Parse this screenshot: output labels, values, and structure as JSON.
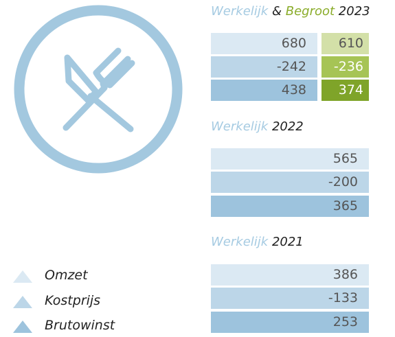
{
  "legend": [
    "Omzet",
    "Kostprijs",
    "Brutowinst"
  ],
  "blocks": [
    {
      "heading": {
        "actual": "Werkelijk",
        "joiner": "&",
        "budget": "Begroot",
        "year": "2023"
      },
      "actual": [
        680,
        -242,
        438
      ],
      "budget": [
        610,
        -236,
        374
      ]
    },
    {
      "heading": {
        "actual": "Werkelijk",
        "year": "2022"
      },
      "actual": [
        565,
        -200,
        365
      ]
    },
    {
      "heading": {
        "actual": "Werkelijk",
        "year": "2021"
      },
      "actual": [
        386,
        -133,
        253
      ]
    }
  ]
}
